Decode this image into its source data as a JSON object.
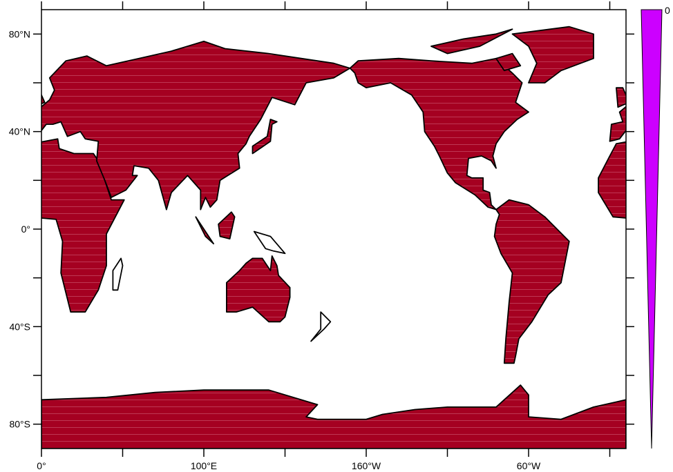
{
  "map": {
    "projection": "cylindrical-equidistant",
    "lon_range": [
      0,
      360
    ],
    "lat_range": [
      -90,
      90
    ],
    "land_fill_color": "#a50021",
    "stripe_color": "#c8506a",
    "coastline_color": "#000000",
    "x_ticks": [
      {
        "lon": 0,
        "label": "0°"
      },
      {
        "lon": 50,
        "label": ""
      },
      {
        "lon": 100,
        "label": "100°E"
      },
      {
        "lon": 150,
        "label": ""
      },
      {
        "lon": 200,
        "label": "160°W"
      },
      {
        "lon": 250,
        "label": ""
      },
      {
        "lon": 300,
        "label": "60°W"
      },
      {
        "lon": 350,
        "label": ""
      }
    ],
    "y_ticks": [
      {
        "lat": 80,
        "label": "80°N"
      },
      {
        "lat": 60,
        "label": ""
      },
      {
        "lat": 40,
        "label": "40°N"
      },
      {
        "lat": 20,
        "label": ""
      },
      {
        "lat": 0,
        "label": "0°"
      },
      {
        "lat": -20,
        "label": ""
      },
      {
        "lat": -40,
        "label": "40°S"
      },
      {
        "lat": -60,
        "label": ""
      },
      {
        "lat": -80,
        "label": "80°S"
      }
    ]
  },
  "colorbar": {
    "color": "#cc00ff",
    "label": "0"
  }
}
